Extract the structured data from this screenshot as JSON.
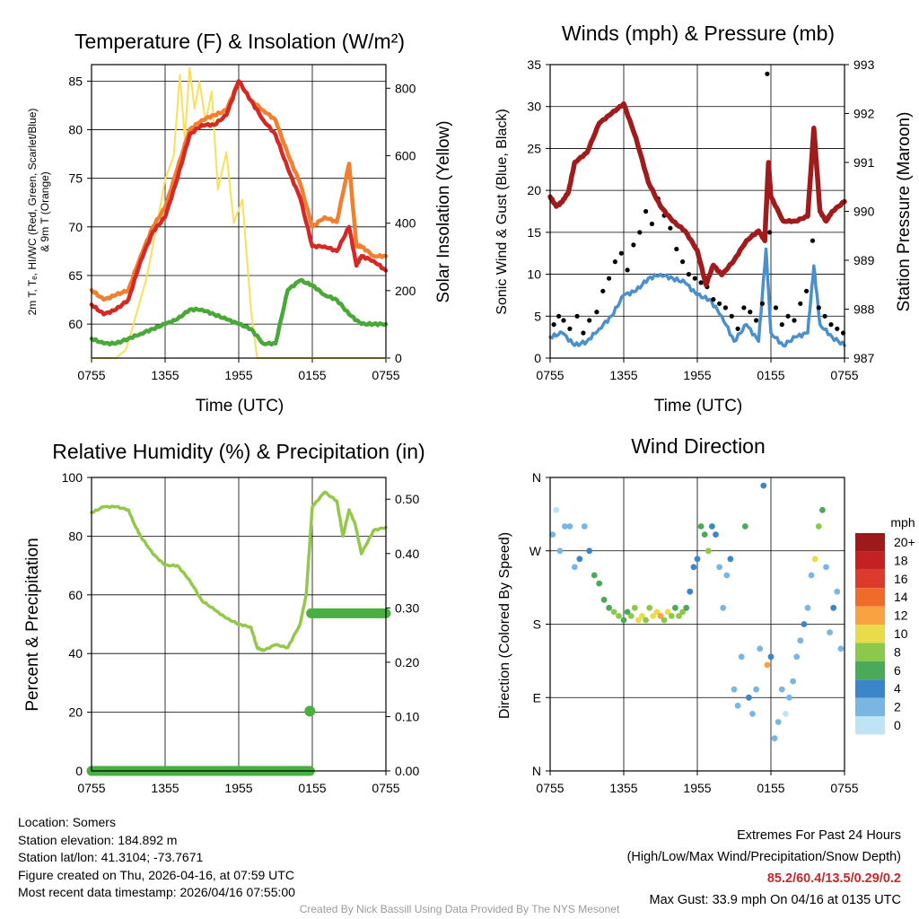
{
  "panels": {
    "temp": {
      "title": "Temperature (F) & Insolation (W/m²)",
      "xlabel": "Time (UTC)",
      "ylabel_line1": "2m T, Tₑ, HI/WC (Red, Green, Scarlet/Blue)",
      "ylabel_line2": "& 9m T (Orange)",
      "ylabel_right": "Solar Insolation (Yellow)"
    },
    "wind": {
      "title": "Winds (mph) & Pressure (mb)",
      "xlabel": "Time (UTC)",
      "ylabel_left": "Sonic Wind & Gust (Blue, Black)",
      "ylabel_right": "Station Pressure (Maroon)"
    },
    "rh": {
      "title": "Relative Humidity (%) & Precipitation (in)",
      "ylabel_left": "Percent & Precipitation"
    },
    "dir": {
      "title": "Wind Direction",
      "ylabel_left": "Direction (Colored By Speed)"
    }
  },
  "chart_data": [
    {
      "id": "temp",
      "type": "line",
      "x_unit": "hours since 07:55 UTC",
      "x_ticks": [
        "0755",
        "1355",
        "1955",
        "0155",
        "0755"
      ],
      "x_tick_hours": [
        0,
        6,
        12,
        18,
        24
      ],
      "xlim": [
        0,
        24
      ],
      "ylim": [
        56.5,
        86.7
      ],
      "y_ticks": [
        60,
        65,
        70,
        75,
        80,
        85
      ],
      "y2lim": [
        0,
        870
      ],
      "y2_ticks": [
        0,
        200,
        400,
        600,
        800
      ],
      "series": [
        {
          "name": "9m T",
          "color": "#f07f2f",
          "axis": "left",
          "x": [
            0,
            1,
            2,
            3,
            4,
            5,
            6,
            7,
            8,
            9,
            10,
            11,
            12,
            13,
            14,
            15,
            16,
            17,
            18,
            19,
            20,
            21,
            21.6,
            22,
            23,
            24
          ],
          "y": [
            63.5,
            62.5,
            63,
            63.5,
            67,
            70,
            72,
            76,
            80,
            81,
            81.5,
            82,
            85,
            83,
            82,
            81,
            77.5,
            74.5,
            70,
            71,
            70.5,
            76.5,
            68,
            68,
            67,
            67
          ]
        },
        {
          "name": "2m T",
          "color": "#d42a26",
          "axis": "left",
          "x": [
            0,
            1,
            2,
            3,
            4,
            5,
            6,
            7,
            8,
            9,
            10,
            11,
            12,
            13,
            14,
            15,
            16,
            17,
            18,
            19,
            20,
            21,
            21.6,
            22,
            23,
            24
          ],
          "y": [
            62,
            61,
            61.5,
            62.5,
            66.5,
            69.5,
            71,
            75,
            79.5,
            80.5,
            80.5,
            81.5,
            85,
            83,
            81,
            79.5,
            76,
            73,
            68,
            68,
            67.5,
            70,
            66,
            67,
            66.5,
            65.5
          ]
        },
        {
          "name": "Dewpoint",
          "color": "#48a838",
          "axis": "left",
          "x": [
            0,
            1,
            2,
            3,
            4,
            5,
            6,
            7,
            8,
            9,
            10,
            11,
            12,
            13,
            14,
            15,
            16,
            17,
            18,
            19,
            20,
            21,
            22,
            23,
            24
          ],
          "y": [
            58.5,
            58,
            58,
            58.5,
            59,
            59.5,
            60,
            60.5,
            61.5,
            61.5,
            61,
            60.5,
            60,
            59.5,
            58,
            58,
            63.5,
            64.5,
            64,
            63,
            62.5,
            61,
            60,
            60,
            60
          ]
        },
        {
          "name": "Solar Insolation",
          "color": "#f8e05a",
          "axis": "right",
          "x": [
            0,
            1,
            2,
            2.8,
            3.5,
            4.5,
            5.2,
            6,
            6.7,
            7.2,
            7.6,
            8,
            8.4,
            8.8,
            9.3,
            9.8,
            10.3,
            11,
            11.6,
            12.3,
            13,
            13.5,
            14,
            24
          ],
          "y": [
            0,
            0,
            0,
            25,
            110,
            240,
            370,
            530,
            600,
            840,
            650,
            860,
            740,
            820,
            700,
            790,
            500,
            610,
            400,
            470,
            140,
            0,
            0,
            0
          ]
        }
      ]
    },
    {
      "id": "wind",
      "type": "line",
      "x_unit": "hours since 07:55 UTC",
      "x_ticks": [
        "0755",
        "1355",
        "1955",
        "0155",
        "0755"
      ],
      "x_tick_hours": [
        0,
        6,
        12,
        18,
        24
      ],
      "xlim": [
        0,
        24
      ],
      "ylim": [
        0,
        35
      ],
      "y_ticks": [
        0,
        5,
        10,
        15,
        20,
        25,
        30,
        35
      ],
      "y2lim": [
        987,
        993
      ],
      "y2_ticks": [
        987,
        988,
        989,
        990,
        991,
        992,
        993
      ],
      "series": [
        {
          "name": "Sonic Wind",
          "color": "#4a90cc",
          "axis": "left",
          "x": [
            0,
            1,
            2,
            3,
            4,
            5,
            6,
            7,
            8,
            9,
            10,
            11,
            12,
            13,
            14,
            15,
            16,
            17,
            17.6,
            18,
            19,
            20,
            21,
            21.5,
            22,
            23,
            24
          ],
          "y": [
            2.5,
            3,
            1.5,
            2,
            3.5,
            5,
            7.5,
            8,
            9.5,
            10,
            9.5,
            9,
            7.5,
            7,
            5,
            2,
            4,
            2,
            13,
            3,
            1.5,
            2.5,
            3,
            11,
            4,
            2.5,
            1.5
          ]
        },
        {
          "name": "Pressure",
          "color": "#a01c1c",
          "axis": "right",
          "x": [
            0,
            0.5,
            1,
            1.5,
            2,
            3,
            4,
            5,
            6,
            7,
            8,
            9,
            10,
            11,
            12,
            12.7,
            13.3,
            14,
            15,
            16,
            17,
            17.5,
            17.8,
            18,
            19,
            20,
            21,
            21.5,
            22,
            22.5,
            23,
            24
          ],
          "y": [
            990.3,
            990.1,
            990.2,
            990.4,
            991,
            991.2,
            991.8,
            992,
            992.2,
            991.5,
            990.6,
            990.1,
            989.8,
            989.6,
            989.2,
            988.5,
            988.9,
            988.7,
            989,
            989.4,
            989.6,
            989.4,
            991,
            990.3,
            989.8,
            989.8,
            989.9,
            991.7,
            990,
            989.8,
            990,
            990.2
          ]
        }
      ],
      "scatter": {
        "name": "Gust",
        "color": "#000000",
        "x": [
          0.3,
          0.7,
          1.1,
          1.6,
          2.2,
          2.7,
          3.2,
          3.8,
          4.3,
          4.8,
          5.3,
          5.8,
          6.3,
          6.8,
          7.3,
          7.8,
          8.3,
          8.8,
          9.3,
          9.8,
          10.3,
          10.8,
          11.3,
          11.8,
          12.3,
          12.8,
          13.3,
          13.8,
          14.3,
          14.8,
          15.3,
          15.8,
          16.3,
          16.8,
          17.3,
          17.7,
          17.9,
          18.4,
          18.9,
          19.4,
          19.9,
          20.4,
          20.9,
          21.4,
          21.9,
          22.4,
          22.9,
          23.4,
          23.9
        ],
        "y": [
          4,
          5,
          4.5,
          3.5,
          5,
          3,
          4.5,
          5.5,
          8,
          9.5,
          11.5,
          12.5,
          10.5,
          13.5,
          15,
          17.5,
          16,
          19,
          17,
          15.5,
          13,
          11.5,
          10,
          9.5,
          9,
          8.5,
          7,
          6.5,
          6,
          5,
          3.5,
          6,
          5.5,
          4.5,
          6.5,
          33.9,
          15,
          6,
          4,
          5,
          4.5,
          6.5,
          8,
          14,
          6,
          5,
          4,
          3.5,
          3
        ]
      },
      "max_gust": {
        "x": 17.7,
        "y": 33.9
      }
    },
    {
      "id": "rh",
      "type": "line",
      "x_unit": "hours since 07:55 UTC",
      "x_ticks": [
        "0755",
        "1355",
        "1955",
        "0155",
        "0755"
      ],
      "x_tick_hours": [
        0,
        6,
        12,
        18,
        24
      ],
      "xlim": [
        0,
        24
      ],
      "ylim": [
        0,
        100
      ],
      "y_ticks": [
        0,
        20,
        40,
        60,
        80,
        100
      ],
      "y2lim": [
        0,
        0.54
      ],
      "y2_ticks": [
        "0.00",
        "0.10",
        "0.20",
        "0.30",
        "0.40",
        "0.50"
      ],
      "series": [
        {
          "name": "Relative Humidity",
          "color": "#93c84a",
          "axis": "left",
          "x": [
            0,
            1,
            2,
            3,
            3.5,
            4,
            5,
            6,
            7,
            8,
            9,
            10,
            11,
            12,
            13,
            13.5,
            14,
            15,
            16,
            17,
            17.5,
            18,
            19,
            20,
            20.5,
            21,
            21.5,
            22,
            23,
            24
          ],
          "y": [
            88,
            90,
            90,
            89,
            84,
            80,
            74,
            70,
            70,
            65,
            58,
            55,
            52,
            50,
            49,
            42,
            41,
            43,
            42,
            50,
            60,
            90,
            95,
            92,
            80,
            89,
            84,
            74,
            82,
            83
          ]
        },
        {
          "name": "Precipitation",
          "color": "#48b040",
          "axis": "right",
          "x": [
            0,
            17.8,
            17.9,
            24
          ],
          "y": [
            0,
            0,
            0.29,
            0.29
          ]
        }
      ],
      "marker": {
        "x": 17.8,
        "y": 0.11
      }
    },
    {
      "id": "dir",
      "type": "scatter",
      "x_unit": "hours since 07:55 UTC",
      "x_ticks": [
        "0755",
        "1355",
        "1955",
        "0155",
        "0755"
      ],
      "x_tick_hours": [
        0,
        6,
        12,
        18,
        24
      ],
      "xlim": [
        0,
        24
      ],
      "ylim": [
        0,
        360
      ],
      "y_ticks": [
        "N",
        "E",
        "S",
        "W",
        "N"
      ],
      "y_tick_degrees": [
        0,
        90,
        180,
        270,
        360
      ],
      "points": {
        "x": [
          0.2,
          0.5,
          0.8,
          1.2,
          1.6,
          2,
          2.4,
          2.8,
          3.2,
          3.6,
          4,
          4.4,
          4.8,
          5.2,
          5.6,
          6,
          6.3,
          6.6,
          6.9,
          7.2,
          7.5,
          7.8,
          8.1,
          8.4,
          8.7,
          9,
          9.3,
          9.6,
          9.9,
          10.2,
          10.5,
          10.8,
          11.1,
          11.4,
          11.7,
          12,
          12.3,
          12.6,
          12.9,
          13.2,
          13.5,
          13.8,
          14.1,
          14.4,
          14.7,
          15,
          15.3,
          15.6,
          15.9,
          16.2,
          16.5,
          16.8,
          17.1,
          17.4,
          17.7,
          18,
          18.3,
          18.6,
          18.9,
          19.2,
          19.5,
          19.8,
          20.1,
          20.4,
          20.7,
          21,
          21.3,
          21.6,
          21.9,
          22.2,
          22.5,
          22.8,
          23.1,
          23.4,
          23.7
        ],
        "y": [
          290,
          320,
          270,
          300,
          300,
          250,
          260,
          300,
          270,
          240,
          230,
          210,
          200,
          195,
          190,
          185,
          195,
          190,
          200,
          185,
          190,
          185,
          200,
          190,
          195,
          190,
          185,
          195,
          190,
          200,
          190,
          195,
          200,
          220,
          250,
          260,
          300,
          290,
          270,
          300,
          290,
          250,
          200,
          240,
          260,
          100,
          80,
          140,
          300,
          90,
          70,
          100,
          150,
          350,
          130,
          140,
          40,
          60,
          100,
          70,
          90,
          110,
          140,
          160,
          180,
          200,
          240,
          260,
          300,
          320,
          250,
          170,
          200,
          220,
          150
        ],
        "speed": [
          2,
          1,
          3,
          2,
          3,
          2,
          4,
          3,
          5,
          6,
          6,
          7,
          7,
          8,
          9,
          6,
          7,
          8,
          9,
          10,
          11,
          8,
          9,
          10,
          11,
          12,
          9,
          10,
          8,
          7,
          9,
          8,
          6,
          5,
          4,
          4,
          6,
          7,
          8,
          5,
          4,
          3,
          2,
          3,
          4,
          3,
          2,
          3,
          7,
          4,
          3,
          2,
          3,
          5,
          13,
          4,
          3,
          2,
          2,
          1,
          2,
          3,
          2,
          3,
          4,
          2,
          3,
          10,
          9,
          6,
          3,
          2,
          4,
          3,
          2
        ]
      },
      "legend": {
        "title": "mph",
        "labels": [
          "20+",
          "18",
          "16",
          "14",
          "12",
          "10",
          "8",
          "6",
          "4",
          "2",
          "0"
        ],
        "colors": [
          "#9e1a1a",
          "#c42222",
          "#dc3a2a",
          "#f06a2a",
          "#f9a242",
          "#e8dc4a",
          "#8cc84a",
          "#4aaa5a",
          "#3a86c8",
          "#7ab6e4",
          "#bfe4f6"
        ]
      }
    }
  ],
  "info": {
    "location": "Location: Somers",
    "elevation": "Station elevation: 184.892 m",
    "latlon": "Station lat/lon: 41.3104; -73.7671",
    "created": "Figure created on Thu, 2026-04-16, at 07:59 UTC",
    "recent": "Most recent data timestamp: 2026/04/16 07:55:00"
  },
  "extremes": {
    "header": "Extremes For Past 24 Hours",
    "fields": "(High/Low/Max Wind/Precipitation/Snow Depth)",
    "values": "85.2/60.4/13.5/0.29/0.2",
    "max_gust": "Max Gust: 33.9 mph On 04/16 at 0135 UTC"
  },
  "credit": "Created By Nick Bassill Using Data Provided By The NYS Mesonet"
}
